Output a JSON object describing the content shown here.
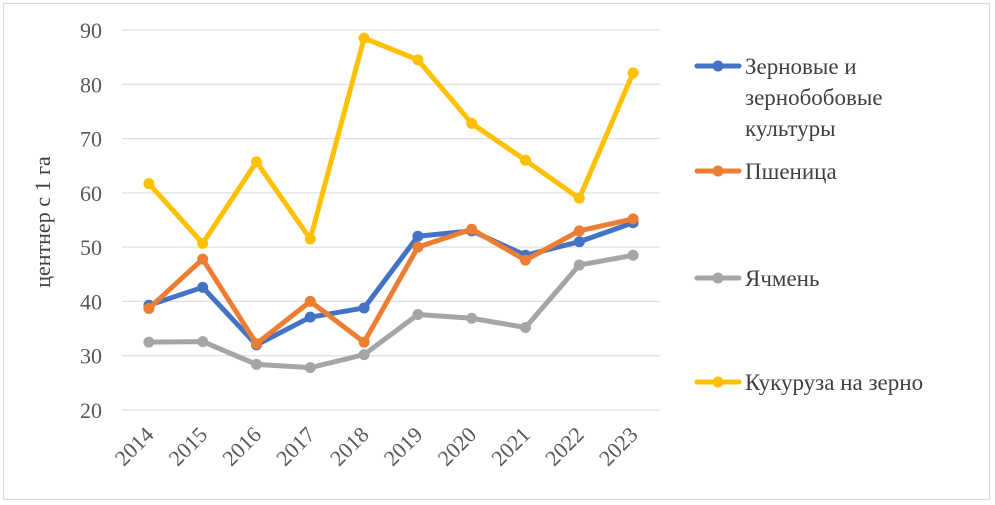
{
  "chart_data": {
    "type": "line",
    "title": "",
    "xlabel": "",
    "ylabel": "центнер с 1 га",
    "x": [
      "2014",
      "2015",
      "2016",
      "2017",
      "2018",
      "2019",
      "2020",
      "2021",
      "2022",
      "2023"
    ],
    "yticks": [
      "20",
      "30",
      "40",
      "50",
      "60",
      "70",
      "80",
      "90"
    ],
    "ylim": [
      20,
      90
    ],
    "grid": true,
    "legend_position": "right",
    "series": [
      {
        "name": "Зерновые и зернобобовые культуры",
        "legend_lines": [
          "Зерновые и",
          "зернобобовые",
          "культуры"
        ],
        "color": "#4472c4",
        "values": [
          39.3,
          42.6,
          32.0,
          37.1,
          38.8,
          52.0,
          53.0,
          48.5,
          51.0,
          54.5
        ]
      },
      {
        "name": "Пшеница",
        "legend_lines": [
          "Пшеница"
        ],
        "color": "#ed7d31",
        "values": [
          38.7,
          47.8,
          32.2,
          40.0,
          32.5,
          50.0,
          53.3,
          47.6,
          53.0,
          55.2
        ]
      },
      {
        "name": "Ячмень",
        "legend_lines": [
          "Ячмень"
        ],
        "color": "#a5a5a5",
        "values": [
          32.5,
          32.6,
          28.4,
          27.8,
          30.2,
          37.6,
          36.9,
          35.2,
          46.7,
          48.5
        ]
      },
      {
        "name": "Кукуруза на зерно",
        "legend_lines": [
          "Кукуруза на зерно"
        ],
        "color": "#ffc000",
        "values": [
          61.7,
          50.7,
          65.7,
          51.5,
          88.5,
          84.5,
          72.8,
          66.0,
          59.0,
          82.1
        ]
      }
    ]
  }
}
